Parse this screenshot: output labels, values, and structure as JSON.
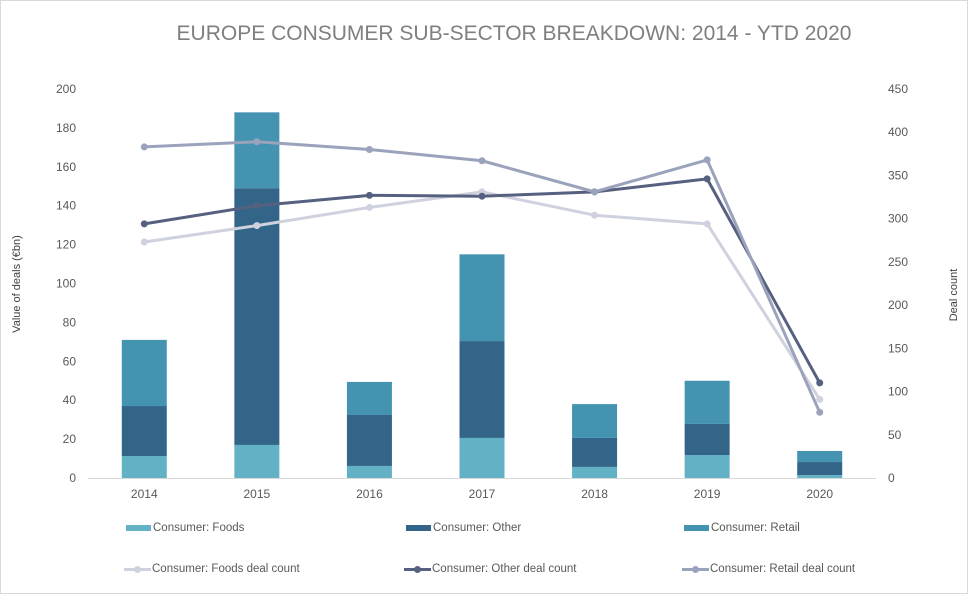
{
  "chart_data": {
    "type": "bar",
    "title": "EUROPE CONSUMER SUB-SECTOR BREAKDOWN: 2014 - YTD 2020",
    "xlabel": "",
    "ylabel": "Value of deals (€bn)",
    "y2label": "Deal count",
    "categories": [
      "2014",
      "2015",
      "2016",
      "2017",
      "2018",
      "2019",
      "2020"
    ],
    "ylim": [
      0,
      200
    ],
    "yticks": [
      0,
      20,
      40,
      60,
      80,
      100,
      120,
      140,
      160,
      180,
      200
    ],
    "y2lim": [
      0,
      450
    ],
    "y2ticks": [
      0,
      50,
      100,
      150,
      200,
      250,
      300,
      350,
      400,
      450
    ],
    "grid": false,
    "legend_position": "bottom",
    "bar_series": [
      {
        "name": "Consumer: Foods",
        "color": "#62b1c4",
        "values": [
          11.3,
          17.0,
          6.2,
          20.6,
          5.7,
          11.8,
          1.5
        ]
      },
      {
        "name": "Consumer: Other",
        "color": "#336589",
        "values": [
          25.7,
          132.0,
          26.2,
          49.8,
          14.9,
          16.0,
          6.7
        ]
      },
      {
        "name": "Consumer: Retail",
        "color": "#4393b1",
        "values": [
          34.0,
          39.0,
          17.0,
          44.6,
          17.4,
          22.2,
          5.7
        ]
      }
    ],
    "line_series": [
      {
        "name": "Consumer: Foods deal count",
        "color": "#cfd2de",
        "axis": "right",
        "values": [
          273,
          292,
          313,
          331,
          304,
          294,
          91
        ]
      },
      {
        "name": "Consumer: Other deal count",
        "color": "#56607f",
        "axis": "right",
        "values": [
          294,
          315,
          327,
          326,
          331,
          346,
          110
        ]
      },
      {
        "name": "Consumer: Retail deal count",
        "color": "#9ba2bb",
        "axis": "right",
        "values": [
          383,
          389,
          380,
          367,
          331,
          368,
          76
        ]
      }
    ]
  }
}
